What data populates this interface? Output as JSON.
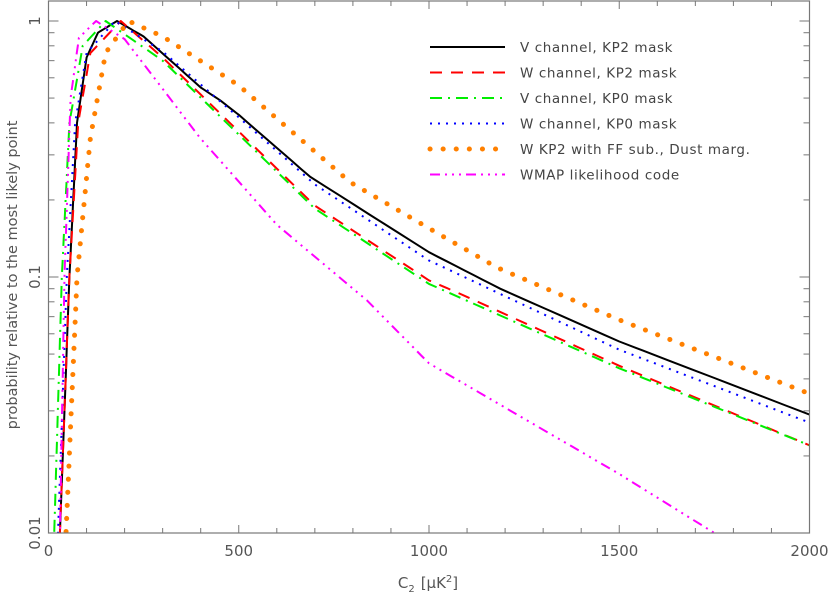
{
  "chart_data": {
    "type": "line",
    "xlabel": "C",
    "xlabel_sub": "2",
    "xlabel_unit": "[μK",
    "xlabel_unit_sup": "2",
    "xlabel_unit_end": "]",
    "ylabel": "probability relative to the most likely point",
    "xlim": [
      0,
      2000
    ],
    "ylim": [
      0.01,
      1.2
    ],
    "yscale": "log",
    "grid": false,
    "legend_position": "top-right",
    "x_ticks": [
      {
        "value": 0,
        "label": "0"
      },
      {
        "value": 500,
        "label": "500"
      },
      {
        "value": 1000,
        "label": "1000"
      },
      {
        "value": 1500,
        "label": "1500"
      },
      {
        "value": 2000,
        "label": "2000"
      }
    ],
    "y_ticks": [
      {
        "value": 0.01,
        "label": "0.01"
      },
      {
        "value": 0.1,
        "label": "0.1"
      },
      {
        "value": 1,
        "label": "1"
      }
    ],
    "series": [
      {
        "name": "V channel, KP2 mask",
        "color": "#000000",
        "style": "solid",
        "points": [
          [
            30,
            0.01
          ],
          [
            55,
            0.1
          ],
          [
            75,
            0.4
          ],
          [
            100,
            0.72
          ],
          [
            130,
            0.9
          ],
          [
            180,
            1
          ],
          [
            250,
            0.87
          ],
          [
            400,
            0.55
          ],
          [
            451,
            0.49
          ],
          [
            500,
            0.43
          ],
          [
            688,
            0.246
          ],
          [
            1000,
            0.125
          ],
          [
            1187,
            0.09
          ],
          [
            1500,
            0.056
          ],
          [
            2000,
            0.029
          ]
        ]
      },
      {
        "name": "W channel, KP2 mask",
        "color": "#ff0000",
        "style": "dashed",
        "points": [
          [
            30,
            0.01
          ],
          [
            55,
            0.1
          ],
          [
            78,
            0.4
          ],
          [
            110,
            0.75
          ],
          [
            190,
            1
          ],
          [
            300,
            0.72
          ],
          [
            500,
            0.37
          ],
          [
            700,
            0.19
          ],
          [
            1000,
            0.097
          ],
          [
            1074,
            0.087
          ],
          [
            1500,
            0.045
          ],
          [
            2000,
            0.022
          ]
        ]
      },
      {
        "name": "V channel, KP0 mask",
        "color": "#00ee00",
        "style": "dash-dot",
        "points": [
          [
            15,
            0.01
          ],
          [
            35,
            0.1
          ],
          [
            55,
            0.4
          ],
          [
            90,
            0.8
          ],
          [
            150,
            1
          ],
          [
            300,
            0.7
          ],
          [
            500,
            0.36
          ],
          [
            700,
            0.185
          ],
          [
            1000,
            0.094
          ],
          [
            1500,
            0.044
          ],
          [
            2000,
            0.022
          ]
        ]
      },
      {
        "name": "W channel, KP0 mask",
        "color": "#0000ff",
        "style": "dotted",
        "points": [
          [
            25,
            0.01
          ],
          [
            48,
            0.1
          ],
          [
            70,
            0.4
          ],
          [
            100,
            0.75
          ],
          [
            175,
            1
          ],
          [
            300,
            0.76
          ],
          [
            500,
            0.42
          ],
          [
            700,
            0.23
          ],
          [
            1000,
            0.116
          ],
          [
            1500,
            0.052
          ],
          [
            2000,
            0.027
          ]
        ]
      },
      {
        "name": "W KP2 with FF sub., Dust marg.",
        "color": "#ff8000",
        "style": "thick-dotted",
        "points": [
          [
            46,
            0.01
          ],
          [
            75,
            0.1
          ],
          [
            110,
            0.35
          ],
          [
            150,
            0.75
          ],
          [
            210,
            1
          ],
          [
            300,
            0.87
          ],
          [
            500,
            0.56
          ],
          [
            792,
            0.235
          ],
          [
            1000,
            0.155
          ],
          [
            1178,
            0.109
          ],
          [
            1500,
            0.068
          ],
          [
            2000,
            0.035
          ]
        ]
      },
      {
        "name": "WMAP likelihood code",
        "color": "#ff00ff",
        "style": "dash-dot-dot-dot",
        "points": [
          [
            30,
            0.01
          ],
          [
            42,
            0.1
          ],
          [
            58,
            0.5
          ],
          [
            80,
            0.86
          ],
          [
            125,
            1
          ],
          [
            200,
            0.85
          ],
          [
            398,
            0.35
          ],
          [
            600,
            0.16
          ],
          [
            837,
            0.081
          ],
          [
            1000,
            0.046
          ],
          [
            1500,
            0.017
          ],
          [
            1750,
            0.01
          ]
        ]
      }
    ]
  }
}
